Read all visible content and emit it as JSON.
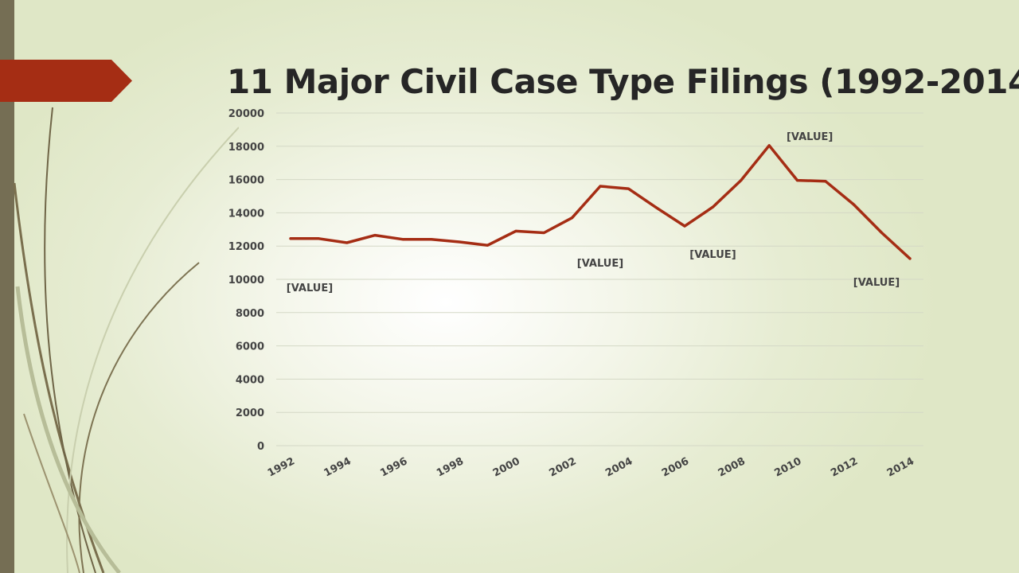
{
  "slide": {
    "title": "11 Major Civil Case Type Filings (1992-2014)",
    "colors": {
      "accent": "#a52d14",
      "sidebar": "#756e54",
      "background": "#e6ecd2"
    }
  },
  "chart_data": {
    "type": "line",
    "title": "11 Major Civil Case Type Filings (1992-2014)",
    "xlabel": "",
    "ylabel": "",
    "x": [
      1992,
      1993,
      1994,
      1995,
      1996,
      1997,
      1998,
      1999,
      2000,
      2001,
      2002,
      2003,
      2004,
      2005,
      2006,
      2007,
      2008,
      2009,
      2010,
      2011,
      2012,
      2013,
      2014
    ],
    "x_tick_labels": [
      "1992",
      "1994",
      "1996",
      "1998",
      "2000",
      "2002",
      "2004",
      "2006",
      "2008",
      "2010",
      "2012",
      "2014"
    ],
    "y_tick_labels": [
      "0",
      "2000",
      "4000",
      "6000",
      "8000",
      "10000",
      "12000",
      "14000",
      "16000",
      "18000",
      "20000"
    ],
    "ylim": [
      0,
      20000
    ],
    "grid": true,
    "legend": "none",
    "series": [
      {
        "color": "#a52d14",
        "values": [
          12450,
          12450,
          12200,
          12650,
          12400,
          12400,
          12250,
          12050,
          12900,
          12800,
          13700,
          15600,
          15450,
          14300,
          13200,
          14350,
          15950,
          18050,
          15950,
          15900,
          14500,
          12800,
          11250
        ]
      }
    ],
    "data_labels": [
      {
        "text": "[VALUE]",
        "x": 1992,
        "y": 12450,
        "position": "below"
      },
      {
        "text": "[VALUE]",
        "x": 2003,
        "y": 15600,
        "position": "below"
      },
      {
        "text": "[VALUE]",
        "x": 2007,
        "y": 14350,
        "position": "below"
      },
      {
        "text": "[VALUE]",
        "x": 2009,
        "y": 18050,
        "position": "above"
      },
      {
        "text": "[VALUE]",
        "x": 2014,
        "y": 11250,
        "position": "below"
      }
    ]
  }
}
